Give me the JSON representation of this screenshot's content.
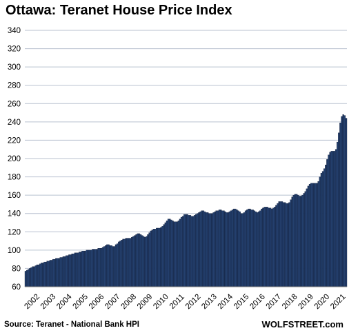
{
  "chart_data": {
    "type": "bar",
    "title": "Ottawa: Teranet House Price Index",
    "xlabel": "",
    "ylabel": "",
    "ylim": [
      60,
      340
    ],
    "yticks": [
      60,
      80,
      100,
      120,
      140,
      160,
      180,
      200,
      220,
      240,
      260,
      280,
      300,
      320,
      340
    ],
    "grid": "horizontal",
    "frequency": "monthly",
    "years": [
      "2002",
      "2003",
      "2004",
      "2005",
      "2006",
      "2007",
      "2008",
      "2009",
      "2010",
      "2011",
      "2012",
      "2013",
      "2014",
      "2015",
      "2016",
      "2017",
      "2018",
      "2019",
      "2020",
      "2021"
    ],
    "values": [
      77,
      78,
      79,
      80,
      81,
      82,
      82,
      83,
      84,
      84,
      85,
      86,
      86,
      87,
      87,
      88,
      88,
      89,
      89,
      90,
      90,
      91,
      91,
      91,
      92,
      92,
      93,
      93,
      94,
      94,
      95,
      95,
      96,
      96,
      97,
      97,
      97,
      98,
      98,
      99,
      99,
      99,
      100,
      100,
      100,
      100,
      101,
      101,
      101,
      101,
      102,
      102,
      102,
      103,
      104,
      105,
      106,
      106,
      105,
      105,
      104,
      104,
      106,
      107,
      109,
      110,
      111,
      112,
      112,
      113,
      113,
      113,
      113,
      114,
      115,
      116,
      117,
      118,
      118,
      117,
      116,
      115,
      114,
      115,
      117,
      119,
      121,
      122,
      123,
      123,
      124,
      124,
      124,
      125,
      126,
      128,
      130,
      132,
      134,
      134,
      133,
      132,
      131,
      131,
      131,
      132,
      134,
      136,
      137,
      139,
      139,
      139,
      138,
      138,
      137,
      137,
      138,
      139,
      140,
      141,
      142,
      143,
      143,
      142,
      141,
      141,
      140,
      140,
      140,
      141,
      142,
      143,
      143,
      144,
      144,
      143,
      143,
      142,
      141,
      141,
      142,
      143,
      144,
      145,
      145,
      144,
      143,
      142,
      140,
      140,
      141,
      143,
      144,
      145,
      145,
      144,
      144,
      143,
      142,
      141,
      142,
      143,
      145,
      146,
      147,
      147,
      147,
      146,
      146,
      145,
      146,
      147,
      149,
      151,
      153,
      153,
      153,
      152,
      152,
      151,
      151,
      152,
      155,
      158,
      160,
      161,
      161,
      160,
      159,
      159,
      160,
      162,
      164,
      167,
      170,
      172,
      173,
      173,
      173,
      173,
      173,
      175,
      180,
      184,
      186,
      189,
      193,
      199,
      204,
      207,
      208,
      208,
      208,
      210,
      218,
      228,
      239,
      246,
      248,
      247,
      244
    ]
  },
  "footer": {
    "source": "Source: Teranet - National Bank HPI",
    "brand": "WOLFSTREET.com"
  },
  "colors": {
    "bar_fill": "#24406e",
    "bar_edge": "#0b1630",
    "grid": "#b8c0cf",
    "axis": "#7f7f7f",
    "text": "#000000",
    "background": "#ffffff"
  }
}
